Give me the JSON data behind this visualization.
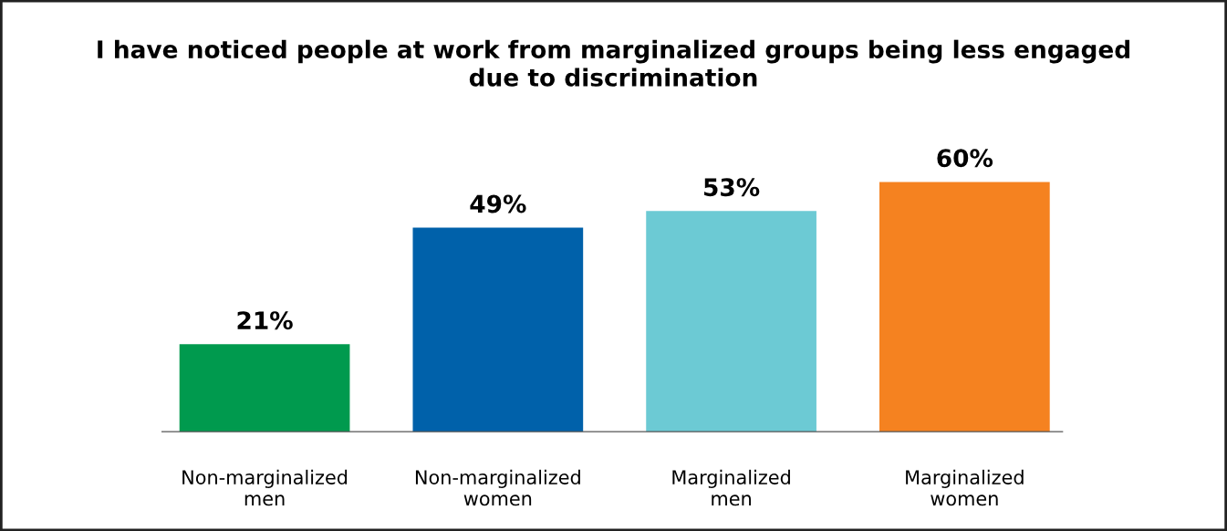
{
  "chart_data": {
    "type": "bar",
    "title": "I have noticed people at work from marginalized groups being less engaged\ndue to discrimination",
    "categories": [
      "Non-marginalized\nmen",
      "Non-marginalized\nwomen",
      "Marginalized\nmen",
      "Marginalized\nwomen"
    ],
    "values": [
      21,
      49,
      53,
      60
    ],
    "colors": [
      "#009a4e",
      "#0061aa",
      "#6ccad4",
      "#f58220"
    ],
    "value_labels": [
      "21%",
      "49%",
      "53%",
      "60%"
    ],
    "grid": false,
    "legend": false
  }
}
